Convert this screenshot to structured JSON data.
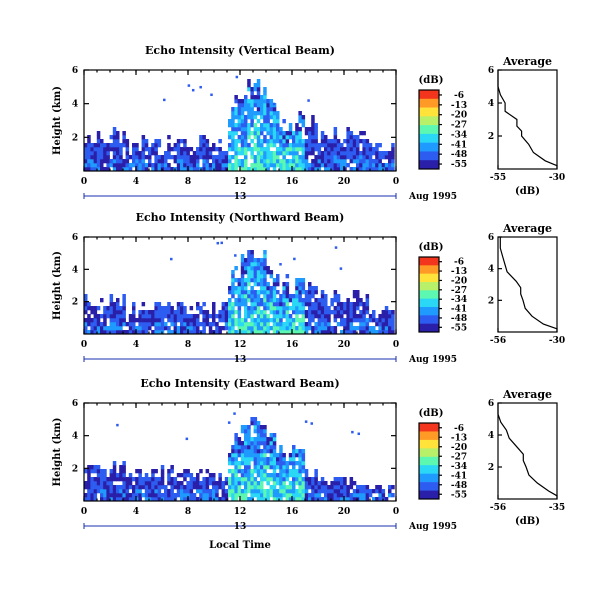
{
  "chart_data": [
    {
      "type": "heatmap",
      "title": "Echo Intensity (Vertical Beam)",
      "ylabel": "Height (km)",
      "yticks": [
        "2",
        "4",
        "6"
      ],
      "xticks": [
        "0",
        "4",
        "8",
        "12",
        "16",
        "20",
        "0"
      ],
      "date_day": "13",
      "date_month": "Aug 1995",
      "colorbar_unit": "(dB)",
      "colorbar_ticks": [
        "-6",
        "-13",
        "-20",
        "-27",
        "-34",
        "-41",
        "-48",
        "-55"
      ],
      "profile_title": "Average",
      "profile_xlabel": "(dB)",
      "profile_xticks": [
        "-55",
        "-30"
      ],
      "profile_yticks": [
        "2",
        "4",
        "6"
      ],
      "profile": {
        "height_km": [
          0.2,
          0.5,
          1.0,
          1.5,
          2.0,
          2.3,
          2.6,
          3.0,
          3.5,
          4.0,
          4.5,
          5.0,
          5.5,
          6.0
        ],
        "db": [
          -30,
          -35,
          -40,
          -42,
          -45,
          -45,
          -47,
          -47,
          -52,
          -52,
          -54,
          -55,
          -56,
          -56
        ]
      }
    },
    {
      "type": "heatmap",
      "title": "Echo Intensity (Northward Beam)",
      "ylabel": "Height (km)",
      "yticks": [
        "2",
        "4",
        "6"
      ],
      "xticks": [
        "0",
        "4",
        "8",
        "12",
        "16",
        "20",
        "0"
      ],
      "date_day": "13",
      "date_month": "Aug 1995",
      "colorbar_unit": "(dB)",
      "colorbar_ticks": [
        "-6",
        "-13",
        "-20",
        "-27",
        "-34",
        "-41",
        "-48",
        "-55"
      ],
      "profile_title": "Average",
      "profile_xlabel": "",
      "profile_xticks": [
        "-56",
        "-30"
      ],
      "profile_yticks": [
        "2",
        "4",
        "6"
      ],
      "profile": {
        "height_km": [
          0.2,
          0.5,
          1.0,
          1.5,
          2.0,
          2.4,
          2.8,
          3.2,
          3.8,
          4.3,
          4.8,
          5.3,
          6.0
        ],
        "db": [
          -30,
          -36,
          -41,
          -44,
          -45,
          -46,
          -46,
          -48,
          -52,
          -53,
          -54,
          -55,
          -55
        ]
      }
    },
    {
      "type": "heatmap",
      "title": "Echo Intensity (Eastward Beam)",
      "ylabel": "Height (km)",
      "yticks": [
        "2",
        "4",
        "6"
      ],
      "xticks": [
        "0",
        "4",
        "8",
        "12",
        "16",
        "20",
        "0"
      ],
      "date_day": "13",
      "date_month": "Aug 1995",
      "colorbar_unit": "(dB)",
      "colorbar_ticks": [
        "-6",
        "-13",
        "-20",
        "-27",
        "-34",
        "-41",
        "-48",
        "-55"
      ],
      "profile_title": "Average",
      "profile_xlabel": "(dB)",
      "profile_xticks": [
        "-56",
        "-35"
      ],
      "profile_yticks": [
        "2",
        "4",
        "6"
      ],
      "profile": {
        "height_km": [
          0.2,
          0.5,
          1.0,
          1.5,
          2.0,
          2.4,
          2.8,
          3.2,
          3.8,
          4.3,
          4.8,
          5.3,
          6.0
        ],
        "db": [
          -35,
          -38,
          -42,
          -45,
          -46,
          -47,
          -47,
          -49,
          -52,
          -53,
          -55,
          -56,
          -56
        ]
      }
    }
  ],
  "shared": {
    "xlabel": "Local Time",
    "xlim_hours": [
      0,
      24
    ],
    "ylim_km": [
      0,
      6
    ],
    "colorscale": [
      "#2a1fa8",
      "#2d5cf0",
      "#1f9bff",
      "#2ad7f5",
      "#5cf7b0",
      "#b8f06a",
      "#ffe23a",
      "#ff9a26",
      "#f2351c"
    ]
  }
}
